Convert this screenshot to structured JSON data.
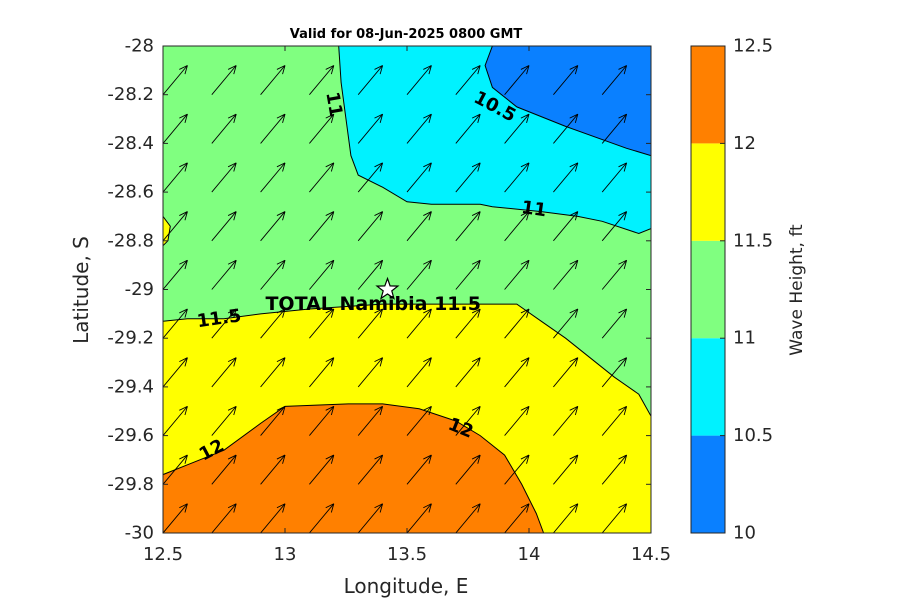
{
  "chart_data": {
    "type": "contour",
    "title": "Valid for 08-Jun-2025 0800 GMT",
    "xlabel": "Longitude, E",
    "ylabel": "Latitude, S",
    "xlim": [
      12.5,
      14.5
    ],
    "ylim": [
      -30,
      -28
    ],
    "xticks": [
      "12.5",
      "13",
      "13.5",
      "14",
      "14.5"
    ],
    "yticks": [
      "-28",
      "-28.2",
      "-28.4",
      "-28.6",
      "-28.8",
      "-29",
      "-29.2",
      "-29.4",
      "-29.6",
      "-29.8",
      "-30"
    ],
    "colorbar": {
      "label": "Wave Height, ft",
      "ticks": [
        "10",
        "10.5",
        "11",
        "11.5",
        "12",
        "12.5"
      ],
      "levels": [
        {
          "range": [
            10,
            10.5
          ],
          "color": "#0a80ff"
        },
        {
          "range": [
            10.5,
            11
          ],
          "color": "#00f2ff"
        },
        {
          "range": [
            11,
            11.5
          ],
          "color": "#80ff80"
        },
        {
          "range": [
            11.5,
            12
          ],
          "color": "#ffff00"
        },
        {
          "range": [
            12,
            12.5
          ],
          "color": "#ff8000"
        }
      ]
    },
    "regions": [
      {
        "level": "10-10.5",
        "color": "#0a80ff",
        "points": [
          [
            13.85,
            -28
          ],
          [
            14.5,
            -28
          ],
          [
            14.5,
            -28.45
          ],
          [
            14.4,
            -28.42
          ],
          [
            14.15,
            -28.33
          ],
          [
            13.95,
            -28.25
          ],
          [
            13.85,
            -28.17
          ],
          [
            13.82,
            -28.08
          ]
        ]
      },
      {
        "level": "10.5-11",
        "color": "#00f2ff",
        "points": [
          [
            13.22,
            -28
          ],
          [
            13.85,
            -28
          ],
          [
            13.82,
            -28.08
          ],
          [
            13.85,
            -28.17
          ],
          [
            13.95,
            -28.25
          ],
          [
            14.15,
            -28.33
          ],
          [
            14.4,
            -28.42
          ],
          [
            14.5,
            -28.45
          ],
          [
            14.5,
            -28.75
          ],
          [
            14.45,
            -28.77
          ],
          [
            14.3,
            -28.72
          ],
          [
            14.2,
            -28.7
          ],
          [
            14.05,
            -28.68
          ],
          [
            13.85,
            -28.66
          ],
          [
            13.8,
            -28.65
          ],
          [
            13.6,
            -28.65
          ],
          [
            13.5,
            -28.64
          ],
          [
            13.4,
            -28.58
          ],
          [
            13.3,
            -28.53
          ],
          [
            13.27,
            -28.45
          ],
          [
            13.25,
            -28.3
          ],
          [
            13.23,
            -28.15
          ]
        ]
      },
      {
        "level": "11.5-12",
        "color": "#ffff00",
        "points": [
          [
            12.5,
            -29.13
          ],
          [
            12.6,
            -29.12
          ],
          [
            12.75,
            -29.12
          ],
          [
            12.9,
            -29.1
          ],
          [
            13.1,
            -29.08
          ],
          [
            13.4,
            -29.06
          ],
          [
            13.6,
            -29.06
          ],
          [
            13.75,
            -29.06
          ],
          [
            13.95,
            -29.06
          ],
          [
            14.05,
            -29.13
          ],
          [
            14.15,
            -29.2
          ],
          [
            14.25,
            -29.28
          ],
          [
            14.35,
            -29.36
          ],
          [
            14.45,
            -29.43
          ],
          [
            14.5,
            -29.52
          ],
          [
            14.5,
            -30
          ],
          [
            14.06,
            -30
          ],
          [
            14.03,
            -29.92
          ],
          [
            13.97,
            -29.8
          ],
          [
            13.9,
            -29.68
          ],
          [
            13.8,
            -29.6
          ],
          [
            13.7,
            -29.54
          ],
          [
            13.55,
            -29.49
          ],
          [
            13.4,
            -29.47
          ],
          [
            13.26,
            -29.47
          ],
          [
            13,
            -29.48
          ],
          [
            12.9,
            -29.55
          ],
          [
            12.75,
            -29.66
          ],
          [
            12.6,
            -29.72
          ],
          [
            12.5,
            -29.76
          ]
        ]
      },
      {
        "level": "11.5-12",
        "color": "#ffff00",
        "points": [
          [
            12.5,
            -28.7
          ],
          [
            12.53,
            -28.74
          ],
          [
            12.52,
            -28.8
          ],
          [
            12.5,
            -28.82
          ]
        ]
      },
      {
        "level": "12-12.5",
        "color": "#ff8000",
        "points": [
          [
            12.5,
            -29.76
          ],
          [
            12.6,
            -29.72
          ],
          [
            12.75,
            -29.66
          ],
          [
            12.9,
            -29.55
          ],
          [
            13,
            -29.48
          ],
          [
            13.26,
            -29.47
          ],
          [
            13.4,
            -29.47
          ],
          [
            13.55,
            -29.49
          ],
          [
            13.7,
            -29.54
          ],
          [
            13.8,
            -29.6
          ],
          [
            13.9,
            -29.68
          ],
          [
            13.97,
            -29.8
          ],
          [
            14.03,
            -29.92
          ],
          [
            14.06,
            -30
          ],
          [
            12.5,
            -30
          ]
        ]
      }
    ],
    "contour_lines": [
      {
        "points": [
          [
            13.85,
            -28
          ],
          [
            13.82,
            -28.08
          ],
          [
            13.85,
            -28.17
          ],
          [
            13.95,
            -28.25
          ],
          [
            14.15,
            -28.33
          ],
          [
            14.4,
            -28.42
          ],
          [
            14.5,
            -28.45
          ]
        ]
      },
      {
        "points": [
          [
            13.22,
            -28
          ],
          [
            13.23,
            -28.15
          ],
          [
            13.25,
            -28.3
          ],
          [
            13.27,
            -28.45
          ],
          [
            13.3,
            -28.53
          ],
          [
            13.4,
            -28.58
          ],
          [
            13.5,
            -28.64
          ],
          [
            13.6,
            -28.65
          ],
          [
            13.8,
            -28.65
          ],
          [
            13.85,
            -28.66
          ],
          [
            14.05,
            -28.68
          ],
          [
            14.2,
            -28.7
          ],
          [
            14.3,
            -28.72
          ],
          [
            14.45,
            -28.77
          ],
          [
            14.5,
            -28.75
          ]
        ]
      },
      {
        "points": [
          [
            12.5,
            -29.13
          ],
          [
            12.6,
            -29.12
          ],
          [
            12.75,
            -29.12
          ],
          [
            12.9,
            -29.1
          ],
          [
            13.1,
            -29.08
          ],
          [
            13.4,
            -29.06
          ],
          [
            13.6,
            -29.06
          ],
          [
            13.75,
            -29.06
          ],
          [
            13.95,
            -29.06
          ],
          [
            14.05,
            -29.13
          ],
          [
            14.15,
            -29.2
          ],
          [
            14.25,
            -29.28
          ],
          [
            14.35,
            -29.36
          ],
          [
            14.45,
            -29.43
          ],
          [
            14.5,
            -29.52
          ]
        ]
      },
      {
        "points": [
          [
            12.5,
            -28.7
          ],
          [
            12.53,
            -28.74
          ],
          [
            12.52,
            -28.8
          ],
          [
            12.5,
            -28.82
          ]
        ]
      },
      {
        "points": [
          [
            12.5,
            -29.76
          ],
          [
            12.6,
            -29.72
          ],
          [
            12.75,
            -29.66
          ],
          [
            12.9,
            -29.55
          ],
          [
            13,
            -29.48
          ],
          [
            13.26,
            -29.47
          ],
          [
            13.4,
            -29.47
          ],
          [
            13.55,
            -29.49
          ],
          [
            13.7,
            -29.54
          ],
          [
            13.8,
            -29.6
          ],
          [
            13.9,
            -29.68
          ],
          [
            13.97,
            -29.8
          ],
          [
            14.03,
            -29.92
          ],
          [
            14.06,
            -30
          ]
        ]
      }
    ],
    "contour_labels": [
      {
        "text": "10.5",
        "x": 13.86,
        "y": -28.25,
        "rotation": 28
      },
      {
        "text": "11",
        "x": 13.2,
        "y": -28.24,
        "rotation": 80
      },
      {
        "text": "11",
        "x": 14.02,
        "y": -28.67,
        "rotation": 8
      },
      {
        "text": "11.5",
        "x": 12.73,
        "y": -29.12,
        "rotation": -8
      },
      {
        "text": "12",
        "x": 12.7,
        "y": -29.66,
        "rotation": -28
      },
      {
        "text": "12",
        "x": 13.72,
        "y": -29.57,
        "rotation": 22
      }
    ],
    "site": {
      "label": "TOTAL Namibia 11.5",
      "x": 13.42,
      "y": -29.0,
      "label_x": 12.92,
      "label_y": -29.06
    },
    "wind_arrows": {
      "x_start": 12.5,
      "x_step": 0.2,
      "y_start": -28.0,
      "y_step": -0.2,
      "dx": 0.1,
      "dy": 0.12
    }
  }
}
